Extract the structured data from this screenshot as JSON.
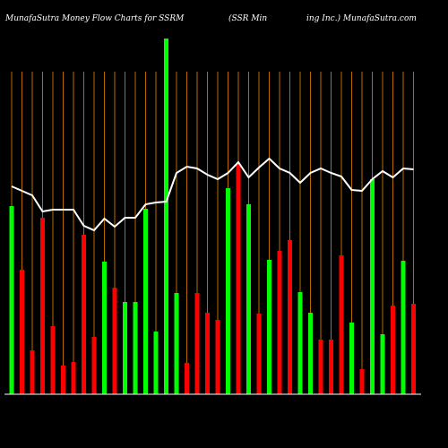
{
  "chart_data": {
    "type": "bar",
    "title": "MunafaSutra  Money Flow  Charts for SSRM",
    "subtitle_left": "(SSR Min",
    "subtitle_right": "ing Inc.) MunafaSutra.com",
    "values": [
      210,
      139,
      49,
      197,
      76,
      32,
      36,
      178,
      64,
      148,
      119,
      103,
      103,
      207,
      70,
      397,
      113,
      35,
      113,
      91,
      83,
      230,
      256,
      212,
      90,
      150,
      160,
      172,
      114,
      91,
      61,
      61,
      155,
      80,
      28,
      240,
      67,
      99,
      149,
      101
    ],
    "colors": [
      "#00ff00",
      "#ff0000",
      "#ff0000",
      "#ff0000",
      "#ff0000",
      "#ff0000",
      "#ff0000",
      "#ff0000",
      "#ff0000",
      "#00ff00",
      "#ff0000",
      "#00ff00",
      "#00ff00",
      "#00ff00",
      "#00ff00",
      "#00ff00",
      "#00ff00",
      "#ff0000",
      "#ff0000",
      "#ff0000",
      "#ff0000",
      "#00ff00",
      "#ff0000",
      "#00ff00",
      "#ff0000",
      "#00ff00",
      "#ff0000",
      "#ff0000",
      "#00ff00",
      "#00ff00",
      "#ff0000",
      "#ff0000",
      "#ff0000",
      "#00ff00",
      "#ff0000",
      "#00ff00",
      "#00ff00",
      "#ff0000",
      "#00ff00",
      "#ff0000"
    ],
    "line_values": [
      232,
      227,
      222,
      204,
      206,
      206,
      206,
      188,
      183,
      196,
      187,
      197,
      197,
      212,
      214,
      215,
      247,
      254,
      252,
      245,
      240,
      247,
      259,
      242,
      253,
      263,
      252,
      247,
      236,
      247,
      252,
      247,
      243,
      228,
      227,
      240,
      249,
      242,
      252,
      251
    ],
    "line_color": "#ffffff",
    "grid_color": "#b86a00"
  }
}
